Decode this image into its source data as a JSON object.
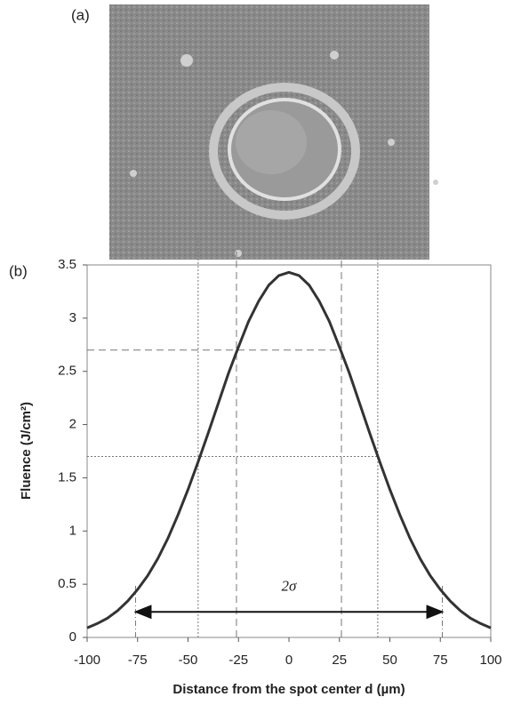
{
  "panel_labels": [
    "(a)",
    "(b)"
  ],
  "chart_data": {
    "type": "line",
    "xlabel": "Distance from the spot center d (µm)",
    "ylabel": "Fluence (J/cm²)",
    "x": [
      -100,
      -95,
      -90,
      -85,
      -80,
      -75,
      -70,
      -65,
      -60,
      -55,
      -50,
      -45,
      -40,
      -35,
      -30,
      -25,
      -20,
      -15,
      -10,
      -5,
      0,
      5,
      10,
      15,
      20,
      25,
      30,
      35,
      40,
      45,
      50,
      55,
      60,
      65,
      70,
      75,
      80,
      85,
      90,
      95,
      100
    ],
    "series": [
      {
        "color": "#333333",
        "values": [
          0.09,
          0.13,
          0.18,
          0.25,
          0.34,
          0.45,
          0.58,
          0.74,
          0.93,
          1.15,
          1.39,
          1.65,
          1.92,
          2.2,
          2.48,
          2.73,
          2.97,
          3.16,
          3.31,
          3.4,
          3.43,
          3.4,
          3.31,
          3.16,
          2.97,
          2.73,
          2.48,
          2.2,
          1.92,
          1.65,
          1.39,
          1.15,
          0.93,
          0.74,
          0.58,
          0.45,
          0.34,
          0.25,
          0.18,
          0.13,
          0.09
        ]
      }
    ],
    "xlim": [
      -100,
      100
    ],
    "xticks": [
      -100,
      -75,
      -50,
      -25,
      0,
      25,
      50,
      75,
      100
    ],
    "ylim": [
      0,
      3.5
    ],
    "yticks": [
      0,
      0.5,
      1,
      1.5,
      2,
      2.5,
      3,
      3.5
    ],
    "hlines": [
      {
        "y": 2.7,
        "x_end": 25,
        "style": "dashed"
      },
      {
        "y": 1.7,
        "x_end": 44,
        "style": "dotted"
      }
    ],
    "vlines": [
      {
        "x": -26,
        "style": "dashed"
      },
      {
        "x": 26,
        "style": "dashed"
      },
      {
        "x": -45,
        "style": "dotted"
      },
      {
        "x": 44,
        "style": "dotted"
      },
      {
        "x": -76,
        "y_top": 0.5,
        "style": "dashdot"
      },
      {
        "x": 76,
        "y_top": 0.5,
        "style": "dashdot"
      }
    ],
    "arrow": {
      "x": [
        -76,
        76
      ],
      "y": 0.24
    },
    "annotation": {
      "text": "2σ",
      "x": 0,
      "y": 0.47
    }
  }
}
